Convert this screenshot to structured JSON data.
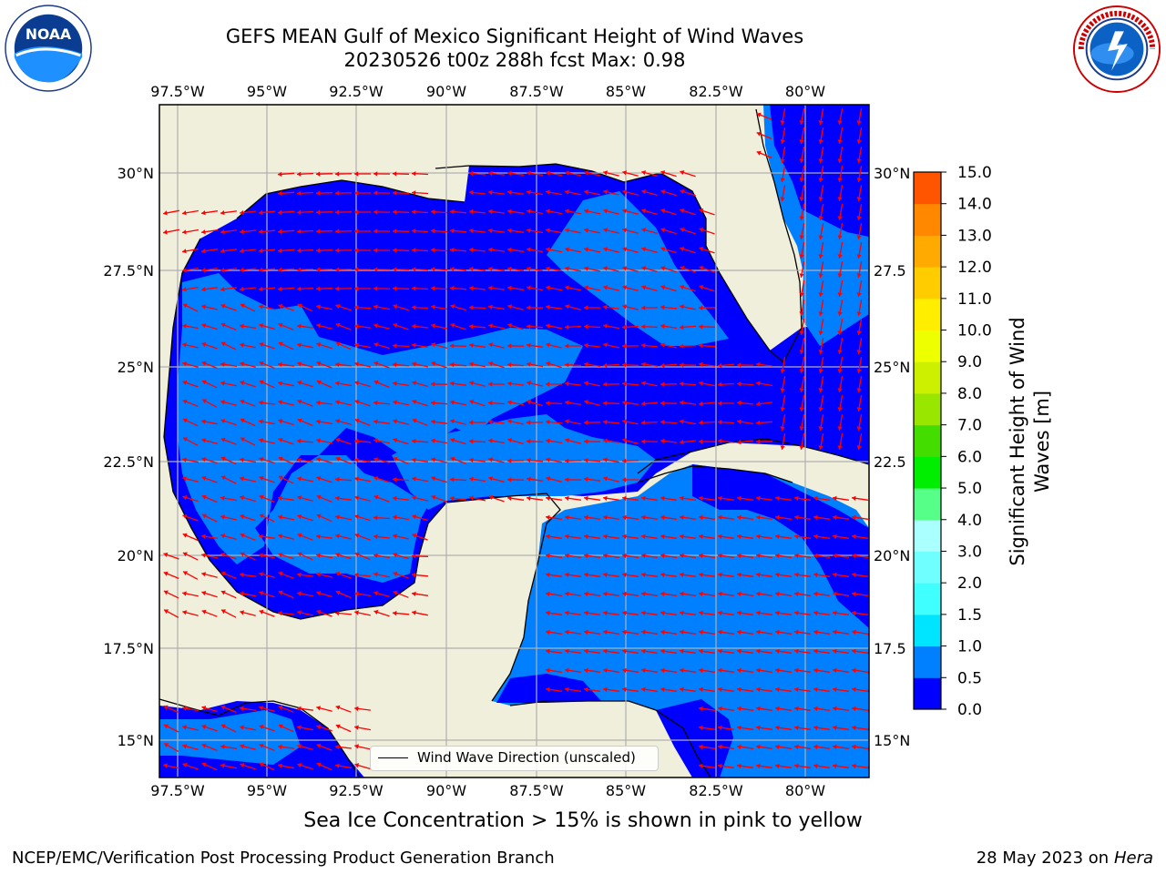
{
  "header": {
    "title_line1": "GEFS MEAN Gulf of Mexico Significant Height of Wind Waves",
    "title_line2": "20230526 t00z 288h fcst   Max: 0.98"
  },
  "logos": {
    "noaa": {
      "icon": "noaa-logo",
      "text": "NOAA",
      "ring_text": "NATIONAL OCEANIC AND ATMOSPHERIC ADMINISTRATION · U.S. DEPARTMENT OF COMMERCE"
    },
    "nws": {
      "icon": "nws-logo",
      "ring_text": "NATIONAL WEATHER SERVICE"
    }
  },
  "map": {
    "lon_labels": [
      "97.5°W",
      "95°W",
      "92.5°W",
      "90°W",
      "87.5°W",
      "85°W",
      "82.5°W",
      "80°W"
    ],
    "lat_labels": [
      "30°N",
      "27.5°N",
      "25°N",
      "22.5°N",
      "20°N",
      "17.5°N",
      "15°N"
    ],
    "lat_labels_right": [
      "30°N",
      "27.5",
      "25°N",
      "22.5",
      "20°N",
      "17.5",
      "15°N"
    ],
    "extent": {
      "lon": [
        -98,
        -78.25
      ],
      "lat": [
        14,
        31.75
      ]
    },
    "land_color": "#efefdc",
    "ocean_colors": {
      "0.0-0.5": "#0000ff",
      "0.5-1.0": "#0080ff"
    },
    "arrow_color": "#ff0000",
    "legend_label": "Wind Wave Direction (unscaled)"
  },
  "colorbar": {
    "label_line1": "Significant Height of Wind",
    "label_line2": "Waves [m]",
    "ticks": [
      "0.0",
      "0.5",
      "1.0",
      "1.5",
      "2.0",
      "3.0",
      "4.0",
      "5.0",
      "6.0",
      "7.0",
      "8.0",
      "9.0",
      "10.0",
      "11.0",
      "12.0",
      "13.0",
      "14.0",
      "15.0"
    ],
    "colors": [
      "#0000ff",
      "#0080ff",
      "#00e5ff",
      "#40ffff",
      "#70ffff",
      "#aaffff",
      "#55ff88",
      "#00ee00",
      "#44dd00",
      "#99e600",
      "#ccf000",
      "#eeff00",
      "#ffee00",
      "#ffcc00",
      "#ffaa00",
      "#ff8800",
      "#ff5500",
      "#ff2200",
      "#ff0000"
    ]
  },
  "footer": {
    "note": "Sea Ice Concentration > 15% is shown in pink to yellow",
    "credit": "NCEP/EMC/Verification Post Processing Product Generation Branch",
    "date": "28 May 2023 on",
    "host": "Hera"
  }
}
